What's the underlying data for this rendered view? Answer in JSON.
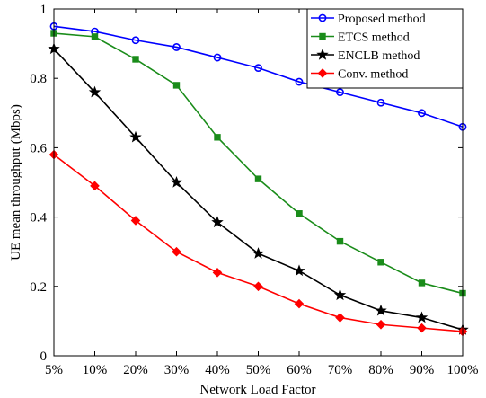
{
  "chart_data": {
    "type": "line",
    "title": "",
    "xlabel": "Network Load Factor",
    "ylabel": "UE mean throughput (Mbps)",
    "categories": [
      "5%",
      "10%",
      "20%",
      "30%",
      "40%",
      "50%",
      "60%",
      "70%",
      "80%",
      "90%",
      "100%"
    ],
    "ylim": [
      0,
      1
    ],
    "yticks": [
      "0",
      "0.2",
      "0.4",
      "0.6",
      "0.8",
      "1"
    ],
    "ytick_values": [
      0,
      0.2,
      0.4,
      0.6,
      0.8,
      1
    ],
    "grid": false,
    "legend_position": "top-right",
    "series": [
      {
        "name": "Proposed method",
        "color": "#0000ff",
        "marker": "circle",
        "values": [
          0.95,
          0.935,
          0.91,
          0.89,
          0.86,
          0.83,
          0.79,
          0.76,
          0.73,
          0.7,
          0.66
        ]
      },
      {
        "name": "ETCS method",
        "color": "#1a8c1a",
        "marker": "square",
        "values": [
          0.93,
          0.92,
          0.855,
          0.78,
          0.63,
          0.51,
          0.41,
          0.33,
          0.27,
          0.21,
          0.18
        ]
      },
      {
        "name": "ENCLB method",
        "color": "#000000",
        "marker": "star",
        "values": [
          0.885,
          0.76,
          0.63,
          0.5,
          0.385,
          0.295,
          0.245,
          0.175,
          0.13,
          0.11,
          0.075
        ]
      },
      {
        "name": "Conv. method",
        "color": "#ff0000",
        "marker": "diamond",
        "values": [
          0.58,
          0.49,
          0.39,
          0.3,
          0.24,
          0.2,
          0.15,
          0.11,
          0.09,
          0.08,
          0.07
        ]
      }
    ]
  }
}
